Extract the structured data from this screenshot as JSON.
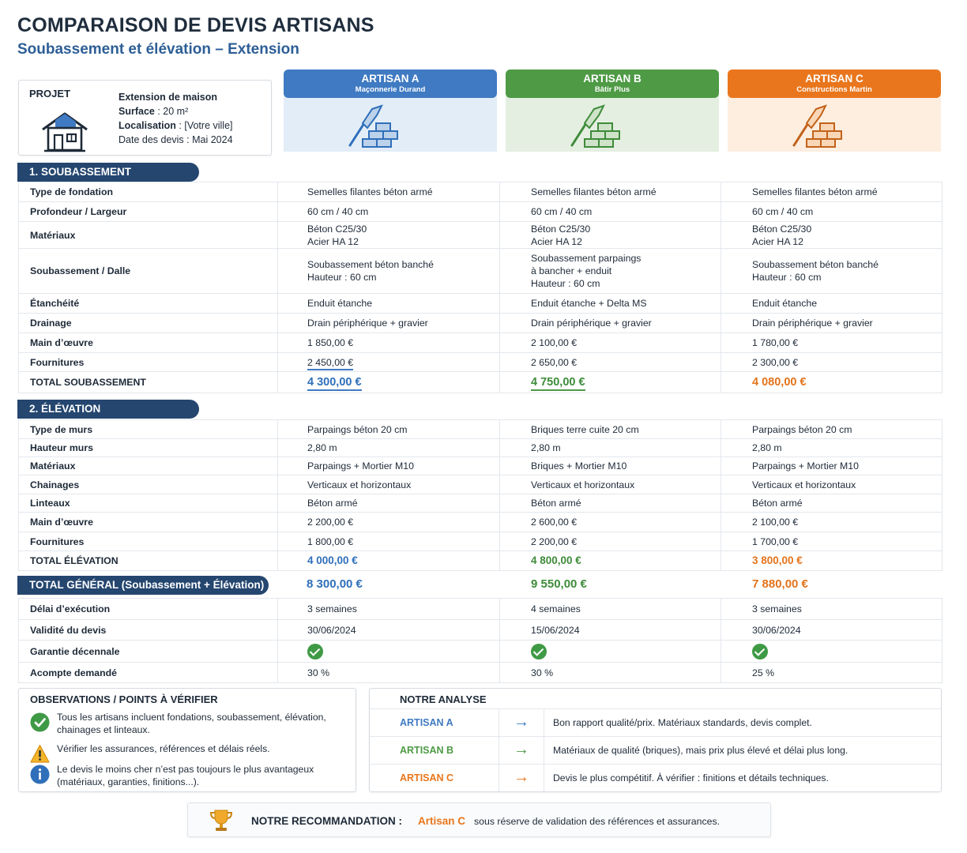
{
  "title": "COMPARAISON DE DEVIS ARTISANS",
  "subtitle": "Soubassement et élévation – Extension",
  "project": {
    "label": "PROJET",
    "name": "Extension de maison",
    "surface_label": "Surface",
    "surface_value": " : 20 m²",
    "location_label": "Localisation",
    "location_value": " : [Votre ville]",
    "date": "Date des devis : Mai 2024",
    "icon": "house-icon"
  },
  "artisans": [
    {
      "name": "ARTISAN A",
      "company": "Maçonnerie Durand",
      "color": "#3f7ac2"
    },
    {
      "name": "ARTISAN B",
      "company": "Bâtir Plus",
      "color": "#4e9a45"
    },
    {
      "name": "ARTISAN C",
      "company": "Constructions Martin",
      "color": "#e9761c"
    }
  ],
  "soubassement": {
    "section": "1. SOUBASSEMENT",
    "rows": [
      {
        "label": "Type de fondation",
        "a": "Semelles filantes béton armé",
        "b": "Semelles filantes béton armé",
        "c": "Semelles filantes béton armé"
      },
      {
        "label": "Profondeur / Largeur",
        "a": "60 cm / 40 cm",
        "b": "60 cm / 40 cm",
        "c": "60 cm / 40 cm"
      },
      {
        "label": "Matériaux",
        "a": [
          "Béton C25/30",
          "Acier HA 12"
        ],
        "b": [
          "Béton C25/30",
          "Acier HA 12"
        ],
        "c": [
          "Béton C25/30",
          "Acier HA 12"
        ]
      },
      {
        "label": "Soubassement / Dalle",
        "a": [
          "Soubassement béton banché",
          "Hauteur : 60 cm"
        ],
        "b": [
          "Soubassement parpaings",
          "à bancher + enduit",
          "Hauteur : 60 cm"
        ],
        "c": [
          "Soubassement béton banché",
          "Hauteur : 60 cm"
        ]
      },
      {
        "label": "Étanchéité",
        "a": "Enduit étanche",
        "b": "Enduit étanche + Delta MS",
        "c": "Enduit étanche"
      },
      {
        "label": "Drainage",
        "a": "Drain périphérique + gravier",
        "b": "Drain périphérique + gravier",
        "c": "Drain périphérique + gravier"
      },
      {
        "label": "Main d’œuvre",
        "a": "1 850,00 €",
        "b": "2 100,00 €",
        "c": "1 780,00 €"
      },
      {
        "label": "Fournitures",
        "a": "2 450,00 €",
        "b": "2 650,00 €",
        "c": "2 300,00 €"
      }
    ],
    "total": {
      "label": "TOTAL SOUBASSEMENT",
      "a": "4 300,00 €",
      "b": "4 750,00 €",
      "c": "4 080,00 €"
    }
  },
  "elevation": {
    "section": "2. ÉLÉVATION",
    "rows": [
      {
        "label": "Type de murs",
        "a": "Parpaings béton 20 cm",
        "b": "Briques terre cuite 20 cm",
        "c": "Parpaings béton 20 cm"
      },
      {
        "label": "Hauteur murs",
        "a": "2,80 m",
        "b": "2,80 m",
        "c": "2,80 m"
      },
      {
        "label": "Matériaux",
        "a": "Parpaings + Mortier M10",
        "b": "Briques + Mortier M10",
        "c": "Parpaings + Mortier M10"
      },
      {
        "label": "Chainages",
        "a": "Verticaux et horizontaux",
        "b": "Verticaux et horizontaux",
        "c": "Verticaux et horizontaux"
      },
      {
        "label": "Linteaux",
        "a": "Béton armé",
        "b": "Béton armé",
        "c": "Béton armé"
      },
      {
        "label": "Main d’œuvre",
        "a": "2 200,00 €",
        "b": "2 600,00 €",
        "c": "2 100,00 €"
      },
      {
        "label": "Fournitures",
        "a": "1 800,00 €",
        "b": "2 200,00 €",
        "c": "1 700,00 €"
      }
    ],
    "total": {
      "label": "TOTAL ÉLÉVATION",
      "a": "4 000,00 €",
      "b": "4 800,00 €",
      "c": "3 800,00 €"
    }
  },
  "grand_total": {
    "label": "TOTAL GÉNÉRAL (Soubassement + Élévation)",
    "a": "8 300,00 €",
    "b": "9 550,00 €",
    "c": "7 880,00 €"
  },
  "conditions": [
    {
      "label": "Délai d’exécution",
      "a": "3 semaines",
      "b": "4 semaines",
      "c": "3 semaines"
    },
    {
      "label": "Validité du devis",
      "a": "30/06/2024",
      "b": "15/06/2024",
      "c": "30/06/2024"
    },
    {
      "label": "Garantie décennale",
      "a": "check-icon",
      "b": "check-icon",
      "c": "check-icon"
    },
    {
      "label": "Acompte demandé",
      "a": "30 %",
      "b": "30 %",
      "c": "25 %"
    }
  ],
  "observations": {
    "title": "OBSERVATIONS / POINTS À VÉRIFIER",
    "items": [
      {
        "icon": "check-circle-icon",
        "text": "Tous les artisans incluent fondations, soubassement, élévation, chainages et linteaux."
      },
      {
        "icon": "warning-icon",
        "text": "Vérifier les assurances, références et délais réels."
      },
      {
        "icon": "info-icon",
        "text": "Le devis le moins cher n’est pas toujours le plus avantageux (matériaux, garanties, finitions...)."
      }
    ]
  },
  "analysis": {
    "title": "NOTRE ANALYSE",
    "rows": [
      {
        "name": "ARTISAN A",
        "arrow": "→",
        "text": "Bon rapport qualité/prix. Matériaux standards, devis complet."
      },
      {
        "name": "ARTISAN B",
        "arrow": "→",
        "text": "Matériaux de qualité (briques), mais prix plus élevé et délai plus long."
      },
      {
        "name": "ARTISAN C",
        "arrow": "→",
        "text": "Devis le plus compétitif. À vérifier : finitions et détails techniques."
      }
    ]
  },
  "recommendation": {
    "label": "NOTRE RECOMMANDATION :",
    "who": "Artisan C",
    "rest": "sous réserve de validation des références et assurances.",
    "icon": "trophy-icon"
  }
}
